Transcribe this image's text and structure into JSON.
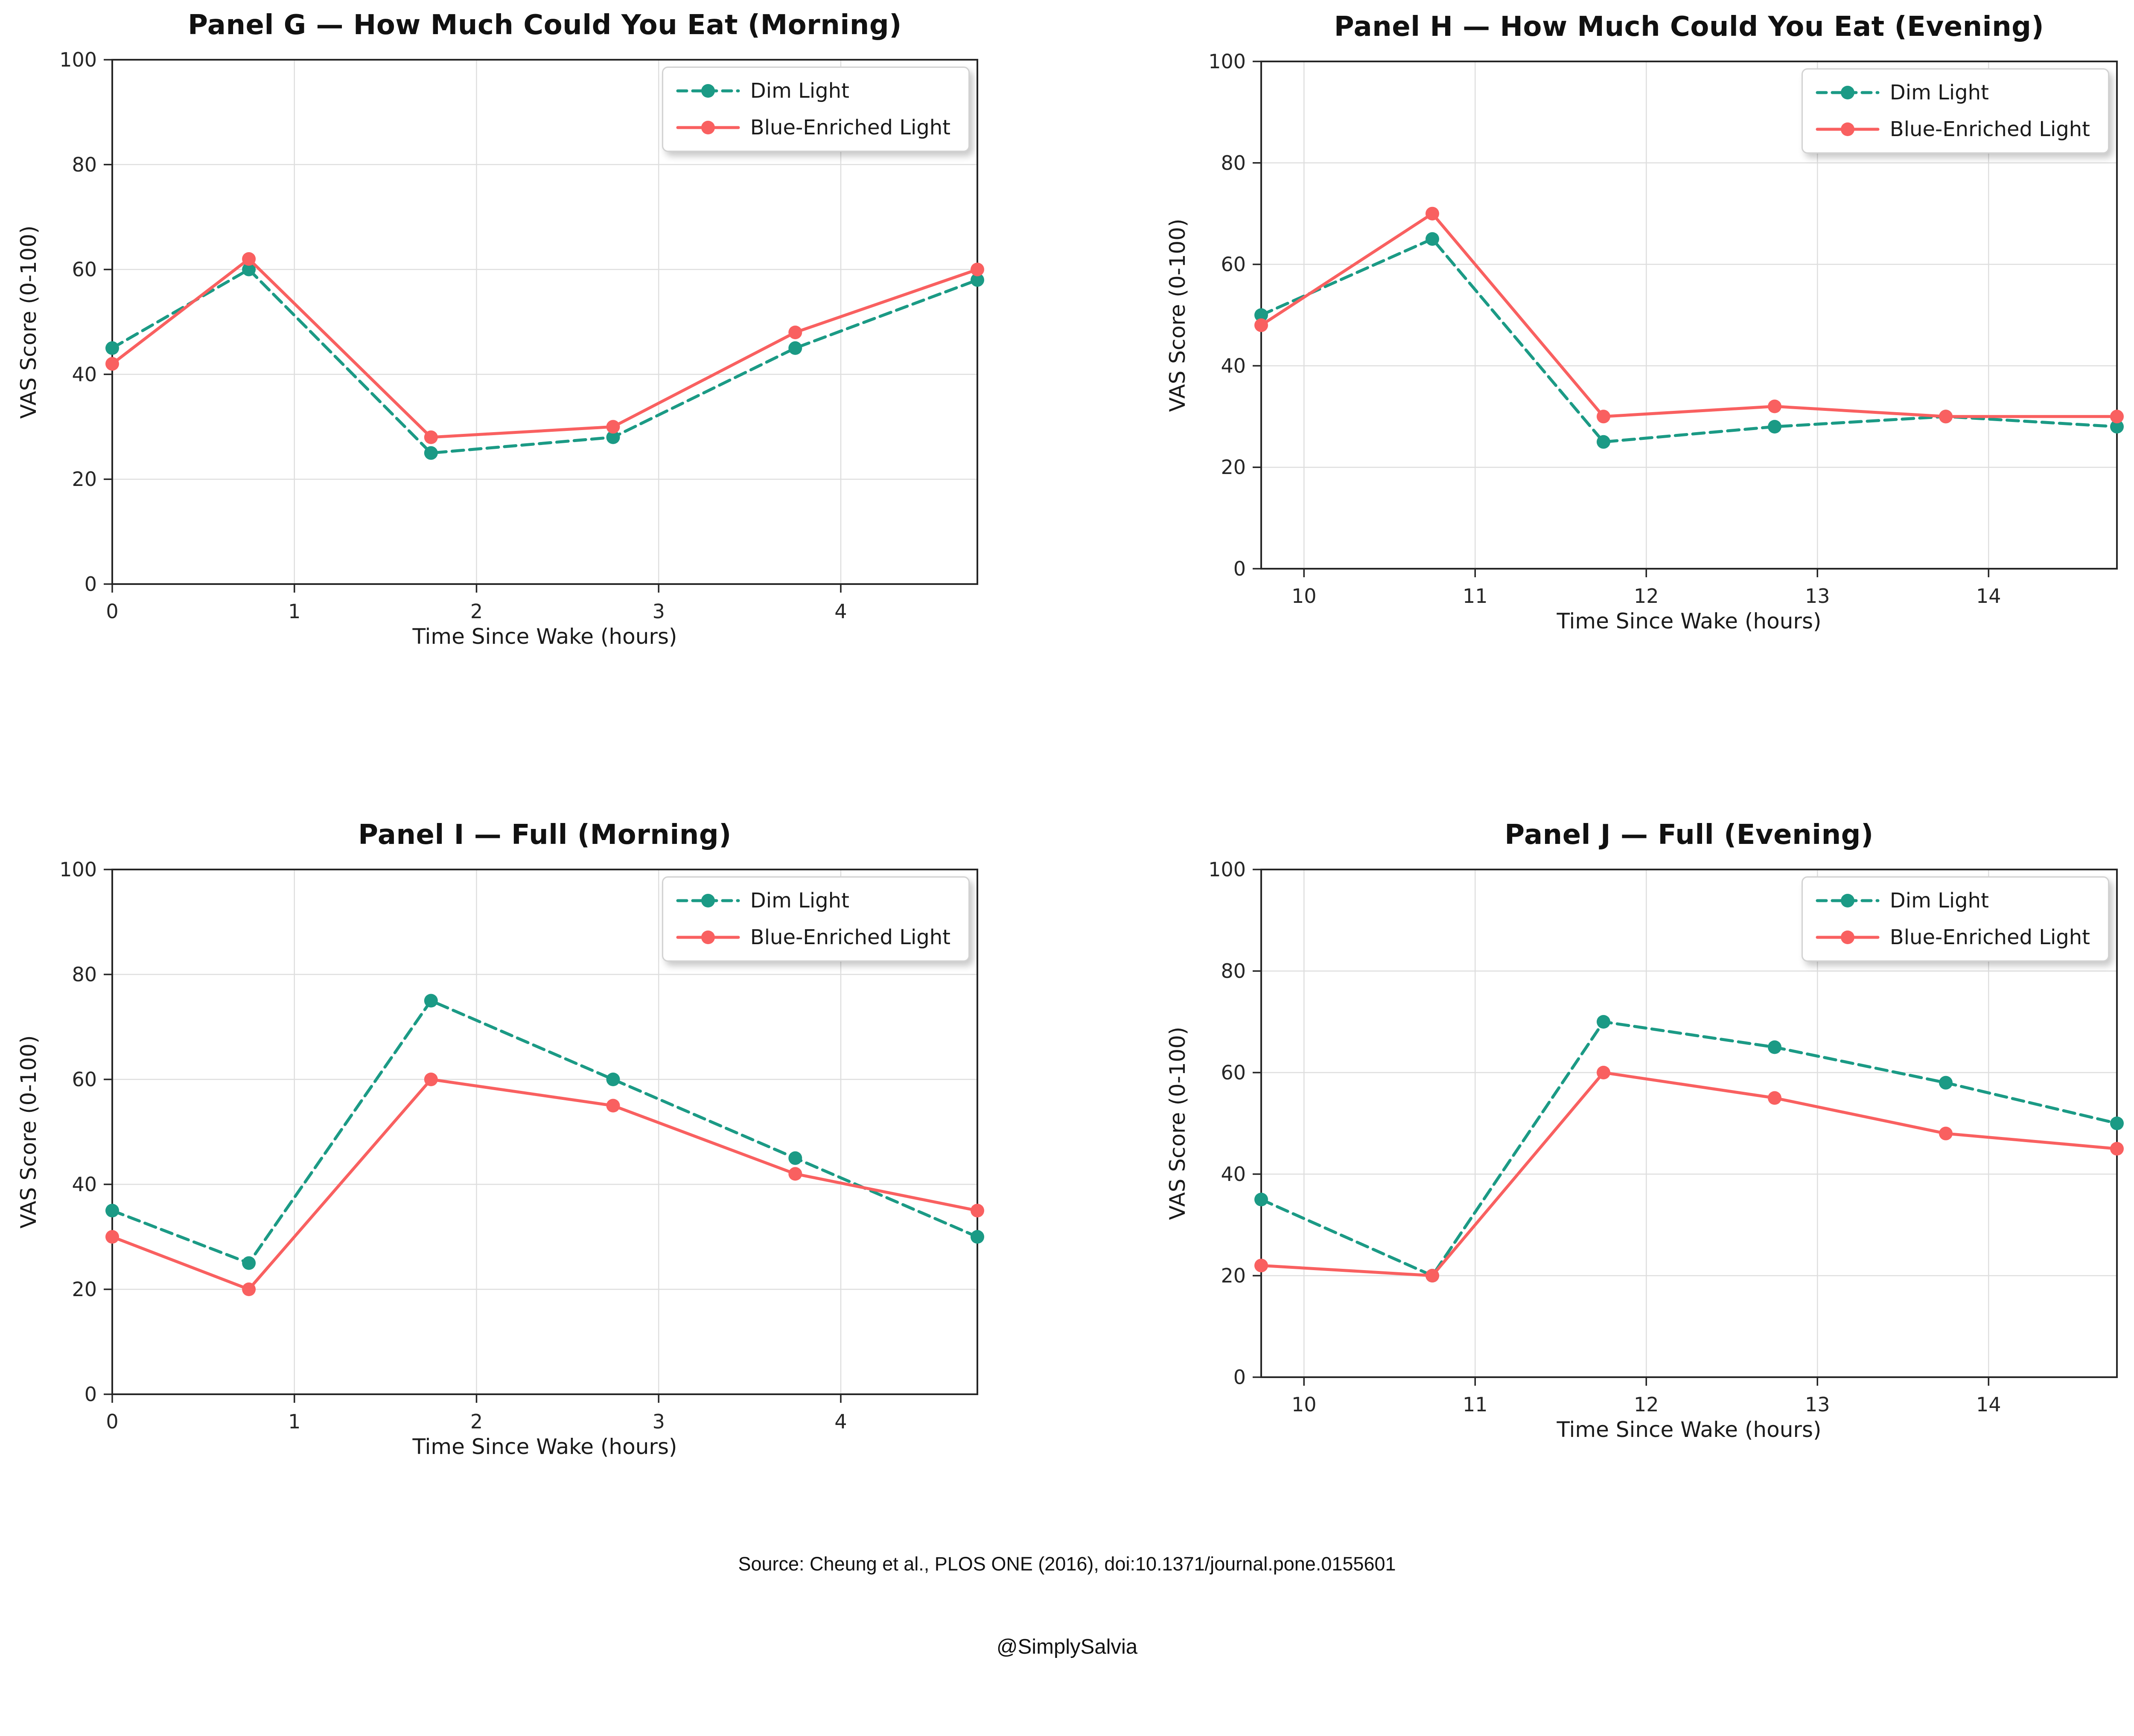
{
  "figure": {
    "source_text": "Source: Cheung et al., PLOS ONE (2016), doi:10.1371/journal.pone.0155601",
    "handle": "@SimplySalvia",
    "colors": {
      "dim": "#1b9a85",
      "blue_enriched": "#f96060",
      "grid": "#dedede",
      "spine": "#262626"
    }
  },
  "chart_data": [
    {
      "id": "panel-g",
      "type": "line",
      "title": "Panel G — How Much Could You Eat (Morning)",
      "xlabel": "Time Since Wake (hours)",
      "ylabel": "VAS Score (0-100)",
      "x": [
        0,
        0.75,
        1.75,
        2.75,
        3.75,
        4.75
      ],
      "series": [
        {
          "name": "Dim Light",
          "style": "dashed",
          "color_key": "dim",
          "values": [
            45,
            60,
            25,
            28,
            45,
            58
          ]
        },
        {
          "name": "Blue-Enriched Light",
          "style": "solid",
          "color_key": "blue_enriched",
          "values": [
            42,
            62,
            28,
            30,
            48,
            60
          ]
        }
      ],
      "xlim": [
        0,
        4.75
      ],
      "ylim": [
        0,
        100
      ],
      "xticks": [
        0,
        1,
        2,
        3,
        4
      ],
      "yticks": [
        0,
        20,
        40,
        60,
        80,
        100
      ],
      "grid": true,
      "legend_position": "upper right"
    },
    {
      "id": "panel-h",
      "type": "line",
      "title": "Panel H — How Much Could You Eat (Evening)",
      "xlabel": "Time Since Wake (hours)",
      "ylabel": "VAS Score (0-100)",
      "x": [
        9.75,
        10.75,
        11.75,
        12.75,
        13.75,
        14.75
      ],
      "series": [
        {
          "name": "Dim Light",
          "style": "dashed",
          "color_key": "dim",
          "values": [
            50,
            65,
            25,
            28,
            30,
            28
          ]
        },
        {
          "name": "Blue-Enriched Light",
          "style": "solid",
          "color_key": "blue_enriched",
          "values": [
            48,
            70,
            30,
            32,
            30,
            30
          ]
        }
      ],
      "xlim": [
        9.75,
        14.75
      ],
      "ylim": [
        0,
        100
      ],
      "xticks": [
        10,
        11,
        12,
        13,
        14
      ],
      "yticks": [
        0,
        20,
        40,
        60,
        80,
        100
      ],
      "grid": true,
      "legend_position": "upper right"
    },
    {
      "id": "panel-i",
      "type": "line",
      "title": "Panel I — Full (Morning)",
      "xlabel": "Time Since Wake (hours)",
      "ylabel": "VAS Score (0-100)",
      "x": [
        0,
        0.75,
        1.75,
        2.75,
        3.75,
        4.75
      ],
      "series": [
        {
          "name": "Dim Light",
          "style": "dashed",
          "color_key": "dim",
          "values": [
            35,
            25,
            75,
            60,
            45,
            30
          ]
        },
        {
          "name": "Blue-Enriched Light",
          "style": "solid",
          "color_key": "blue_enriched",
          "values": [
            30,
            20,
            60,
            55,
            42,
            35
          ]
        }
      ],
      "xlim": [
        0,
        4.75
      ],
      "ylim": [
        0,
        100
      ],
      "xticks": [
        0,
        1,
        2,
        3,
        4
      ],
      "yticks": [
        0,
        20,
        40,
        60,
        80,
        100
      ],
      "grid": true,
      "legend_position": "upper right"
    },
    {
      "id": "panel-j",
      "type": "line",
      "title": "Panel J — Full (Evening)",
      "xlabel": "Time Since Wake (hours)",
      "ylabel": "VAS Score (0-100)",
      "x": [
        9.75,
        10.75,
        11.75,
        12.75,
        13.75,
        14.75
      ],
      "series": [
        {
          "name": "Dim Light",
          "style": "dashed",
          "color_key": "dim",
          "values": [
            35,
            20,
            70,
            65,
            58,
            50
          ]
        },
        {
          "name": "Blue-Enriched Light",
          "style": "solid",
          "color_key": "blue_enriched",
          "values": [
            22,
            20,
            60,
            55,
            48,
            45
          ]
        }
      ],
      "xlim": [
        9.75,
        14.75
      ],
      "ylim": [
        0,
        100
      ],
      "xticks": [
        10,
        11,
        12,
        13,
        14
      ],
      "yticks": [
        0,
        20,
        40,
        60,
        80,
        100
      ],
      "grid": true,
      "legend_position": "upper right"
    }
  ]
}
